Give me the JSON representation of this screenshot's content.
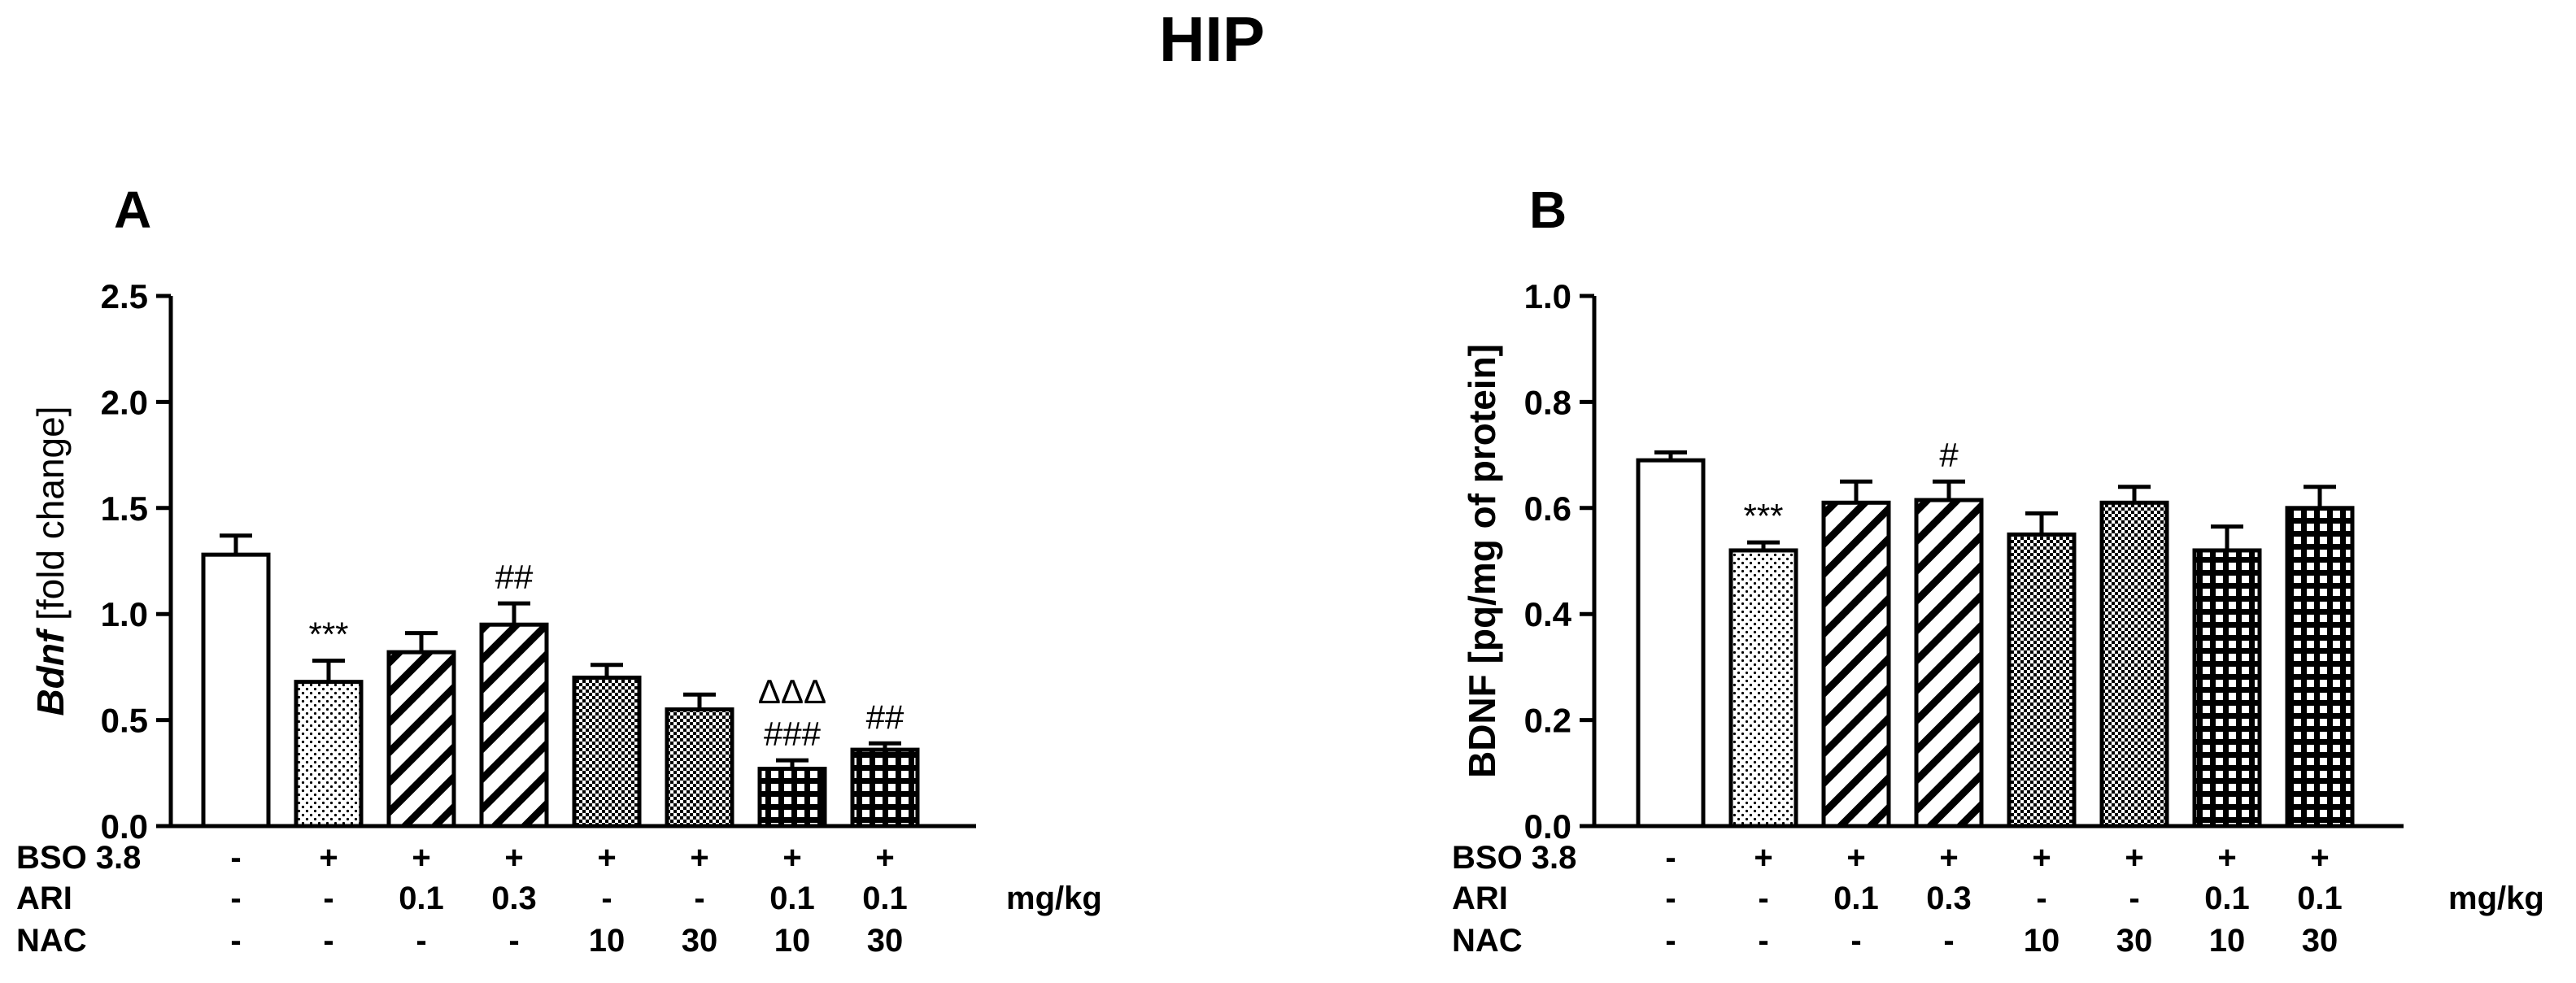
{
  "figure_title": "HIP",
  "chart_data": [
    {
      "type": "bar",
      "panel_label": "A",
      "title": "",
      "ylabel_italic": "Bdnf",
      "ylabel_rest": " [fold change]",
      "ylim": [
        0,
        2.5
      ],
      "yticks": [
        "0.0",
        "0.5",
        "1.0",
        "1.5",
        "2.0",
        "2.5"
      ],
      "values": [
        1.28,
        0.68,
        0.82,
        0.95,
        0.7,
        0.55,
        0.27,
        0.36
      ],
      "errors": [
        0.09,
        0.1,
        0.09,
        0.1,
        0.06,
        0.07,
        0.04,
        0.03
      ],
      "patterns": [
        "white",
        "dots",
        "hatch",
        "hatch",
        "check",
        "check",
        "grid",
        "grid"
      ],
      "annotations": [
        {
          "bar": 1,
          "lines": [
            "***"
          ]
        },
        {
          "bar": 3,
          "lines": [
            "##"
          ]
        },
        {
          "bar": 6,
          "lines": [
            "ΔΔΔ",
            "###"
          ]
        },
        {
          "bar": 7,
          "lines": [
            "##"
          ]
        }
      ],
      "treatments": [
        {
          "name": "BSO 3.8",
          "values": [
            "-",
            "+",
            "+",
            "+",
            "+",
            "+",
            "+",
            "+"
          ],
          "unit": ""
        },
        {
          "name": "ARI",
          "values": [
            "-",
            "-",
            "0.1",
            "0.3",
            "-",
            "-",
            "0.1",
            "0.1"
          ],
          "unit": "mg/kg"
        },
        {
          "name": "NAC",
          "values": [
            "-",
            "-",
            "-",
            "-",
            "10",
            "30",
            "10",
            "30"
          ],
          "unit": ""
        }
      ]
    },
    {
      "type": "bar",
      "panel_label": "B",
      "title": "",
      "ylabel_italic": "",
      "ylabel_rest": "BDNF [pq/mg of protein]",
      "ylim": [
        0,
        1.0
      ],
      "yticks": [
        "0.0",
        "0.2",
        "0.4",
        "0.6",
        "0.8",
        "1.0"
      ],
      "values": [
        0.69,
        0.52,
        0.61,
        0.615,
        0.55,
        0.61,
        0.52,
        0.6
      ],
      "errors": [
        0.015,
        0.015,
        0.04,
        0.035,
        0.04,
        0.03,
        0.045,
        0.04
      ],
      "patterns": [
        "white",
        "dots",
        "hatch",
        "hatch",
        "check",
        "check",
        "grid",
        "grid"
      ],
      "annotations": [
        {
          "bar": 1,
          "lines": [
            "***"
          ]
        },
        {
          "bar": 3,
          "lines": [
            "#"
          ]
        }
      ],
      "treatments": [
        {
          "name": "BSO 3.8",
          "values": [
            "-",
            "+",
            "+",
            "+",
            "+",
            "+",
            "+",
            "+"
          ],
          "unit": ""
        },
        {
          "name": "ARI",
          "values": [
            "-",
            "-",
            "0.1",
            "0.3",
            "-",
            "-",
            "0.1",
            "0.1"
          ],
          "unit": "mg/kg"
        },
        {
          "name": "NAC",
          "values": [
            "-",
            "-",
            "-",
            "-",
            "10",
            "30",
            "10",
            "30"
          ],
          "unit": ""
        }
      ]
    }
  ]
}
